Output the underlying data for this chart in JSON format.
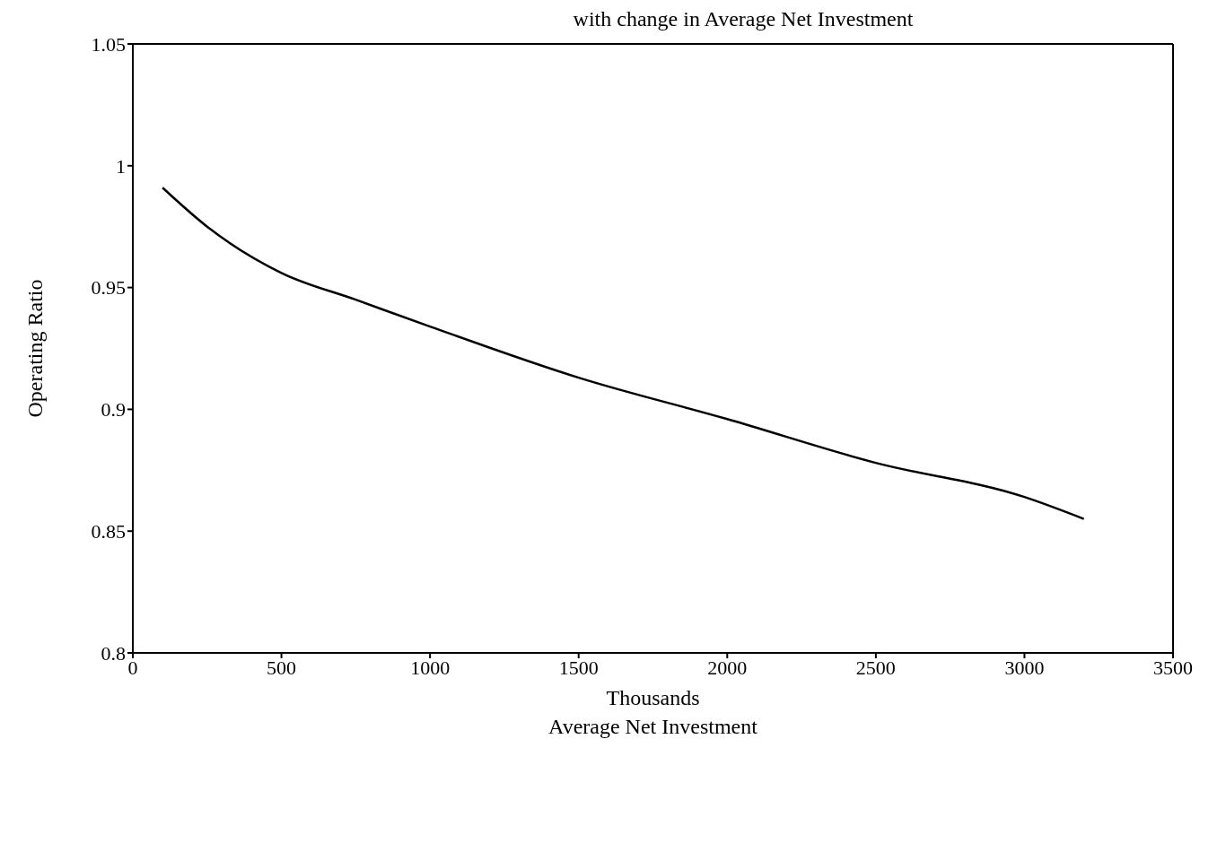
{
  "chart_data": {
    "type": "line",
    "title": "with change in Average Net Investment",
    "xlabel": "Average Net Investment",
    "ylabel": "Operating Ratio",
    "annotations": [
      "Thousands"
    ],
    "x": [
      100,
      250,
      500,
      750,
      1000,
      1500,
      2000,
      2500,
      3000,
      3200
    ],
    "series": [
      {
        "color": "#000000",
        "values": [
          0.991,
          0.975,
          0.956,
          0.945,
          0.934,
          0.913,
          0.896,
          0.878,
          0.864,
          0.855
        ]
      }
    ],
    "xlim": [
      0,
      3500
    ],
    "xticks": [
      0,
      500,
      1000,
      1500,
      2000,
      2500,
      3000,
      3500
    ],
    "ylim": [
      0.8,
      1.05
    ],
    "yticks": [
      0.8,
      0.85,
      0.9,
      0.95,
      1,
      1.05
    ],
    "grid": false,
    "legend": false,
    "marker": "none",
    "line_style": "solid"
  }
}
